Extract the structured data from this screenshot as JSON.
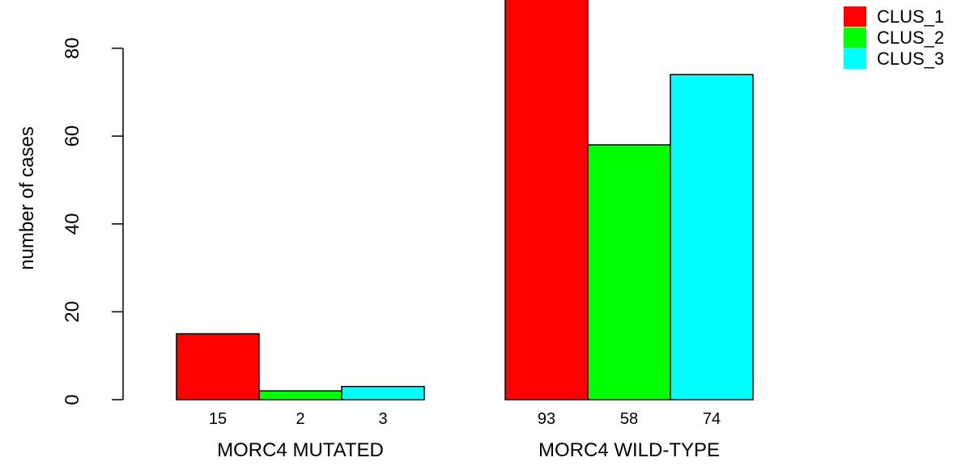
{
  "chart_data": {
    "type": "bar",
    "ylabel": "number of cases",
    "ylim": [
      0,
      93
    ],
    "yticks": [
      0,
      20,
      40,
      60,
      80
    ],
    "grid": false,
    "legend_position": "top-right",
    "groups": [
      {
        "label": "MORC4 MUTATED",
        "values": [
          15,
          2,
          3
        ],
        "value_labels": [
          "15",
          "2",
          "3"
        ]
      },
      {
        "label": "MORC4 WILD-TYPE",
        "values": [
          93,
          58,
          74
        ],
        "value_labels": [
          "93",
          "58",
          "74"
        ]
      }
    ],
    "series": [
      {
        "name": "CLUS_1",
        "color": "#ff0000"
      },
      {
        "name": "CLUS_2",
        "color": "#00ff00"
      },
      {
        "name": "CLUS_3",
        "color": "#00ffff"
      }
    ]
  }
}
